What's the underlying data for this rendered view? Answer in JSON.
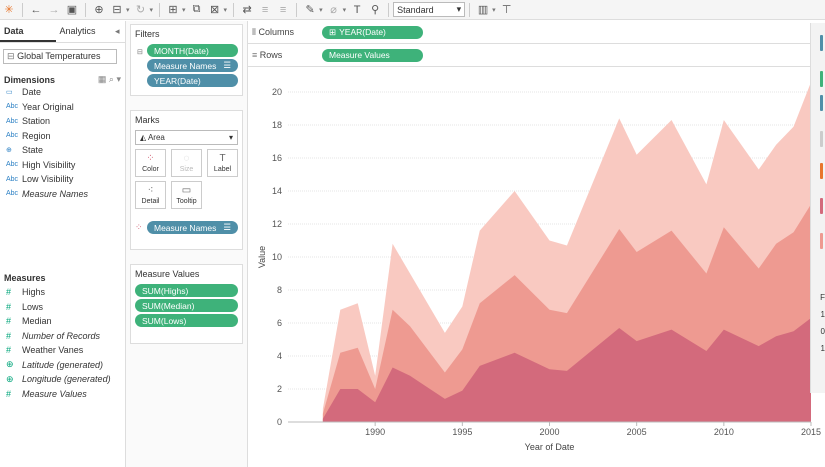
{
  "toolbar": {
    "zoom_label": "Standard"
  },
  "left": {
    "tabs": [
      "Data",
      "Analytics"
    ],
    "datasource": "Global Temperatures",
    "dimensions_title": "Dimensions",
    "dimensions": [
      {
        "label": "Date",
        "icon": "date-icon",
        "italic": false,
        "glyph": "▭"
      },
      {
        "label": "Year Original",
        "icon": "text-field-icon",
        "italic": false,
        "glyph": "Abc"
      },
      {
        "label": "Station",
        "icon": "text-field-icon",
        "italic": false,
        "glyph": "Abc"
      },
      {
        "label": "Region",
        "icon": "text-field-icon",
        "italic": false,
        "glyph": "Abc"
      },
      {
        "label": "State",
        "icon": "globe-icon",
        "italic": false,
        "glyph": "⊕"
      },
      {
        "label": "High Visibility",
        "icon": "text-field-icon",
        "italic": false,
        "glyph": "Abc"
      },
      {
        "label": "Low Visibility",
        "icon": "text-field-icon",
        "italic": false,
        "glyph": "Abc"
      },
      {
        "label": "Measure Names",
        "icon": "text-field-icon",
        "italic": true,
        "glyph": "Abc"
      }
    ],
    "measures_title": "Measures",
    "measures": [
      {
        "label": "Highs",
        "icon": "number-field-icon",
        "italic": false,
        "glyph": "#"
      },
      {
        "label": "Lows",
        "icon": "number-field-icon",
        "italic": false,
        "glyph": "#"
      },
      {
        "label": "Median",
        "icon": "number-field-icon",
        "italic": false,
        "glyph": "#"
      },
      {
        "label": "Number of Records",
        "icon": "number-field-icon",
        "italic": true,
        "glyph": "#"
      },
      {
        "label": "Weather Vanes",
        "icon": "number-field-icon",
        "italic": false,
        "glyph": "#"
      },
      {
        "label": "Latitude (generated)",
        "icon": "globe-icon",
        "italic": true,
        "glyph": "⊕"
      },
      {
        "label": "Longitude (generated)",
        "icon": "globe-icon",
        "italic": true,
        "glyph": "⊕"
      },
      {
        "label": "Measure Values",
        "icon": "number-field-icon",
        "italic": true,
        "glyph": "#"
      }
    ]
  },
  "shelves": {
    "filters_title": "Filters",
    "filters": [
      "MONTH(Date)",
      "Measure Names",
      "YEAR(Date)"
    ],
    "marks_title": "Marks",
    "mark_type": "Area",
    "mark_buttons": [
      "Color",
      "Size",
      "Label",
      "Detail",
      "Tooltip"
    ],
    "marks_pill": "Measure Names",
    "measure_values_title": "Measure Values",
    "measure_values": [
      "SUM(Highs)",
      "SUM(Median)",
      "SUM(Lows)"
    ]
  },
  "main": {
    "columns_label": "Columns",
    "columns_pill": "YEAR(Date)",
    "rows_label": "Rows",
    "rows_pill": "Measure Values",
    "right_panel_text": [
      "F",
      "1",
      "0",
      "1"
    ]
  },
  "colors": {
    "highs": "#f9c9c1",
    "median": "#ee9a91",
    "lows": "#d36a7c",
    "pill_green": "#3eb27a",
    "pill_blue": "#4f8fa8"
  },
  "chart_data": {
    "type": "area",
    "xlabel": "Year of Date",
    "ylabel": "Value",
    "xlim": [
      1985,
      2015
    ],
    "ylim": [
      0,
      20
    ],
    "x_ticks": [
      1990,
      1995,
      2000,
      2005,
      2010,
      2015
    ],
    "y_ticks": [
      0,
      2,
      4,
      6,
      8,
      10,
      12,
      14,
      16,
      18,
      20
    ],
    "x": [
      1987,
      1988,
      1989,
      1990,
      1991,
      1992,
      1994,
      1995,
      1996,
      1998,
      2000,
      2001,
      2004,
      2005,
      2007,
      2009,
      2010,
      2012,
      2013,
      2014,
      2015
    ],
    "series": [
      {
        "name": "SUM(Lows)",
        "values": [
          0.2,
          2.0,
          2.0,
          1.2,
          3.3,
          2.8,
          1.4,
          1.9,
          3.4,
          4.2,
          3.2,
          3.1,
          5.7,
          4.9,
          5.6,
          4.3,
          5.6,
          4.6,
          5.2,
          5.5,
          6.3
        ]
      },
      {
        "name": "SUM(Median)",
        "values": [
          0.5,
          4.2,
          4.5,
          2.0,
          6.8,
          5.8,
          3.0,
          4.4,
          7.2,
          8.9,
          6.8,
          6.6,
          11.7,
          10.3,
          11.6,
          9.0,
          11.8,
          9.3,
          10.8,
          11.5,
          13.2
        ]
      },
      {
        "name": "SUM(Highs)",
        "values": [
          0.8,
          6.8,
          7.2,
          2.8,
          10.8,
          9.0,
          5.4,
          7.0,
          11.6,
          14.0,
          11.0,
          10.7,
          18.4,
          16.2,
          18.3,
          14.4,
          18.3,
          15.3,
          16.8,
          17.9,
          20.6
        ]
      }
    ]
  }
}
